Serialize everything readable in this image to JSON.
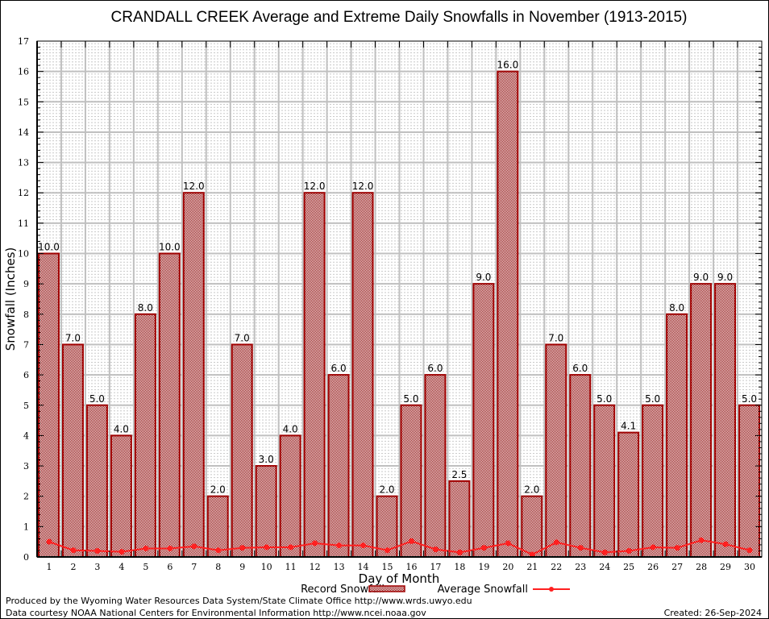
{
  "chart_data": {
    "type": "bar",
    "title": "CRANDALL CREEK Average and Extreme Daily Snowfalls in November (1913-2015)",
    "xlabel": "Day of Month",
    "ylabel": "Snowfall (Inches)",
    "ylim": [
      0,
      17
    ],
    "yticks": [
      0,
      1,
      2,
      3,
      4,
      5,
      6,
      7,
      8,
      9,
      10,
      11,
      12,
      13,
      14,
      15,
      16,
      17
    ],
    "grid": true,
    "legend_position": "bottom-center",
    "categories": [
      "1",
      "2",
      "3",
      "4",
      "5",
      "6",
      "7",
      "8",
      "9",
      "10",
      "11",
      "12",
      "13",
      "14",
      "15",
      "16",
      "17",
      "18",
      "19",
      "20",
      "21",
      "22",
      "23",
      "24",
      "25",
      "26",
      "27",
      "28",
      "29",
      "30"
    ],
    "series": [
      {
        "name": "Record Snowfall",
        "type": "bar",
        "color": "#8b0000",
        "values": [
          10.0,
          7.0,
          5.0,
          4.0,
          8.0,
          10.0,
          12.0,
          2.0,
          7.0,
          3.0,
          4.0,
          12.0,
          6.0,
          12.0,
          2.0,
          5.0,
          6.0,
          2.5,
          9.0,
          16.0,
          2.0,
          7.0,
          6.0,
          5.0,
          4.1,
          5.0,
          8.0,
          9.0,
          9.0,
          5.0
        ],
        "labels": [
          "10.0",
          "7.0",
          "5.0",
          "4.0",
          "8.0",
          "10.0",
          "12.0",
          "2.0",
          "7.0",
          "3.0",
          "4.0",
          "12.0",
          "6.0",
          "12.0",
          "2.0",
          "5.0",
          "6.0",
          "2.5",
          "9.0",
          "16.0",
          "2.0",
          "7.0",
          "6.0",
          "5.0",
          "4.1",
          "5.0",
          "8.0",
          "9.0",
          "9.0",
          "5.0"
        ]
      },
      {
        "name": "Average Snowfall",
        "type": "line",
        "color": "#ff2020",
        "values": [
          0.5,
          0.22,
          0.2,
          0.17,
          0.28,
          0.28,
          0.35,
          0.22,
          0.3,
          0.32,
          0.32,
          0.45,
          0.38,
          0.38,
          0.22,
          0.52,
          0.25,
          0.15,
          0.3,
          0.45,
          0.08,
          0.48,
          0.3,
          0.15,
          0.2,
          0.32,
          0.3,
          0.55,
          0.42,
          0.22
        ]
      }
    ]
  },
  "footer": {
    "line1": "Produced by the Wyoming Water Resources Data System/State Climate Office http://www.wrds.uwyo.edu",
    "line2": "Data courtesy NOAA National Centers for Environmental Information http://www.ncei.noaa.gov",
    "created": "Created:  26-Sep-2024"
  }
}
